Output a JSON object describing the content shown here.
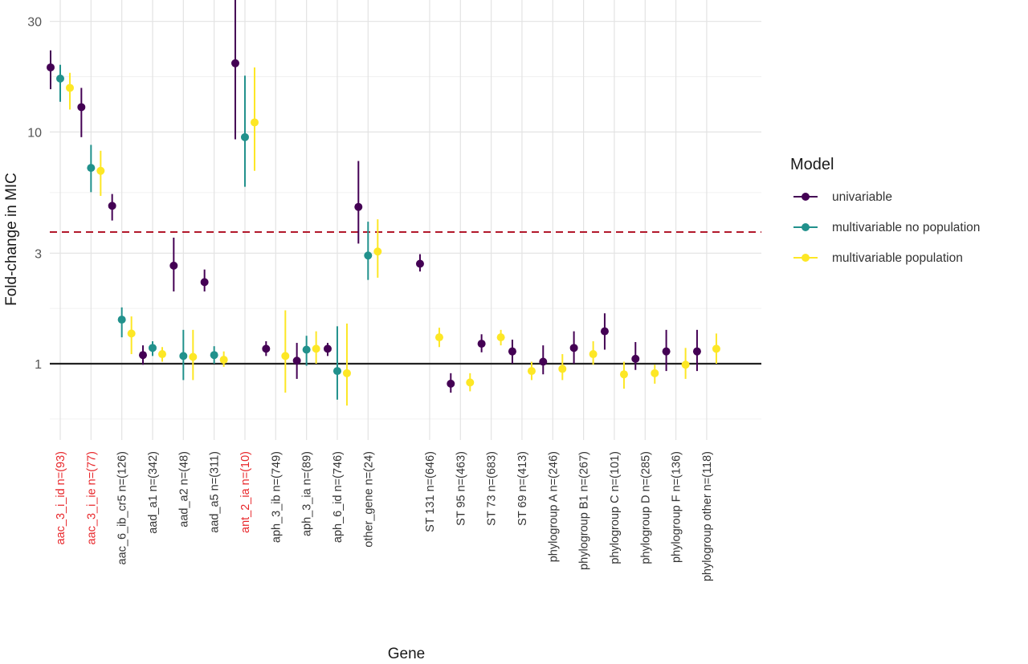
{
  "chart_data": {
    "type": "scatter",
    "subtype": "point-range",
    "ylabel": "Fold-change in MIC",
    "xlabel": "Gene",
    "y_scale": "log",
    "ylim": [
      0.6,
      40
    ],
    "y_ticks": [
      {
        "value": 1,
        "label": "1"
      },
      {
        "value": 3,
        "label": "3"
      },
      {
        "value": 10,
        "label": "10"
      },
      {
        "value": 30,
        "label": "30"
      }
    ],
    "grid": true,
    "reference_lines": [
      {
        "value": 1,
        "style": "solid",
        "color": "#222222"
      },
      {
        "value": 3.7,
        "style": "dashed",
        "color": "#b2182b"
      }
    ],
    "legend": {
      "title": "Model",
      "position": "right"
    },
    "highlight_color": "#e8262a",
    "categories": [
      {
        "label": "aac_3_i_id n=(93)",
        "highlight": true
      },
      {
        "label": "aac_3_i_ie n=(77)",
        "highlight": true
      },
      {
        "label": "aac_6_ib_cr5 n=(126)",
        "highlight": false
      },
      {
        "label": "aad_a1 n=(342)",
        "highlight": false
      },
      {
        "label": "aad_a2 n=(48)",
        "highlight": false
      },
      {
        "label": "aad_a5 n=(311)",
        "highlight": false
      },
      {
        "label": "ant_2_ia n=(10)",
        "highlight": true
      },
      {
        "label": "aph_3_ib n=(749)",
        "highlight": false
      },
      {
        "label": "aph_3_ia n=(89)",
        "highlight": false
      },
      {
        "label": "aph_6_id n=(746)",
        "highlight": false
      },
      {
        "label": "other_gene n=(24)",
        "highlight": false
      },
      {
        "label": "",
        "highlight": false
      },
      {
        "label": "ST 131 n=(646)",
        "highlight": false
      },
      {
        "label": "ST 95 n=(463)",
        "highlight": false
      },
      {
        "label": "ST 73 n=(683)",
        "highlight": false
      },
      {
        "label": "ST 69 n=(413)",
        "highlight": false
      },
      {
        "label": "phylogroup A n=(246)",
        "highlight": false
      },
      {
        "label": "phylogroup B1 n=(267)",
        "highlight": false
      },
      {
        "label": "phylogroup C n=(101)",
        "highlight": false
      },
      {
        "label": "phylogroup D n=(285)",
        "highlight": false
      },
      {
        "label": "phylogroup F n=(136)",
        "highlight": false
      },
      {
        "label": "phylogroup other n=(118)",
        "highlight": false
      }
    ],
    "series": [
      {
        "name": "univariable",
        "color": "#440154",
        "points": [
          {
            "est": 19.0,
            "lo": 15.3,
            "hi": 22.5
          },
          {
            "est": 12.8,
            "lo": 9.5,
            "hi": 15.5
          },
          {
            "est": 4.8,
            "lo": 4.15,
            "hi": 5.4
          },
          {
            "est": 1.09,
            "lo": 0.99,
            "hi": 1.2
          },
          {
            "est": 2.65,
            "lo": 2.05,
            "hi": 3.5
          },
          {
            "est": 2.25,
            "lo": 2.05,
            "hi": 2.55
          },
          {
            "est": 19.8,
            "lo": 9.3,
            "hi": 38.0
          },
          {
            "est": 1.16,
            "lo": 1.08,
            "hi": 1.25
          },
          {
            "est": 1.03,
            "lo": 0.86,
            "hi": 1.23
          },
          {
            "est": 1.16,
            "lo": 1.08,
            "hi": 1.23
          },
          {
            "est": 4.75,
            "lo": 3.3,
            "hi": 7.5
          },
          null,
          {
            "est": 2.7,
            "lo": 2.5,
            "hi": 2.97
          },
          {
            "est": 0.82,
            "lo": 0.75,
            "hi": 0.91
          },
          {
            "est": 1.22,
            "lo": 1.12,
            "hi": 1.34
          },
          {
            "est": 1.13,
            "lo": 1.0,
            "hi": 1.27
          },
          {
            "est": 1.02,
            "lo": 0.9,
            "hi": 1.2
          },
          {
            "est": 1.17,
            "lo": 1.0,
            "hi": 1.38
          },
          {
            "est": 1.38,
            "lo": 1.15,
            "hi": 1.65
          },
          {
            "est": 1.05,
            "lo": 0.94,
            "hi": 1.24
          },
          {
            "est": 1.13,
            "lo": 0.93,
            "hi": 1.4
          },
          {
            "est": 1.13,
            "lo": 0.93,
            "hi": 1.4
          }
        ]
      },
      {
        "name": "multivariable no population",
        "color": "#21918c",
        "points": [
          {
            "est": 17.0,
            "lo": 13.5,
            "hi": 19.5
          },
          {
            "est": 7.0,
            "lo": 5.5,
            "hi": 8.8
          },
          {
            "est": 1.55,
            "lo": 1.3,
            "hi": 1.75
          },
          {
            "est": 1.17,
            "lo": 1.08,
            "hi": 1.25
          },
          {
            "est": 1.08,
            "lo": 0.85,
            "hi": 1.4
          },
          {
            "est": 1.09,
            "lo": 1.0,
            "hi": 1.19
          },
          {
            "est": 9.5,
            "lo": 5.8,
            "hi": 17.5
          },
          null,
          {
            "est": 1.15,
            "lo": 0.98,
            "hi": 1.32
          },
          {
            "est": 0.93,
            "lo": 0.7,
            "hi": 1.45
          },
          {
            "est": 2.93,
            "lo": 2.3,
            "hi": 4.1
          },
          null,
          null,
          null,
          null,
          null,
          null,
          null,
          null,
          null,
          null,
          null
        ]
      },
      {
        "name": "multivariable population",
        "color": "#fde725",
        "points": [
          {
            "est": 15.5,
            "lo": 12.5,
            "hi": 18.0
          },
          {
            "est": 6.8,
            "lo": 5.3,
            "hi": 8.3
          },
          {
            "est": 1.35,
            "lo": 1.1,
            "hi": 1.6
          },
          {
            "est": 1.1,
            "lo": 1.02,
            "hi": 1.18
          },
          {
            "est": 1.07,
            "lo": 0.85,
            "hi": 1.4
          },
          {
            "est": 1.04,
            "lo": 0.97,
            "hi": 1.13
          },
          {
            "est": 11.0,
            "lo": 6.8,
            "hi": 19.0
          },
          {
            "est": 1.08,
            "lo": 0.75,
            "hi": 1.7
          },
          {
            "est": 1.16,
            "lo": 1.0,
            "hi": 1.38
          },
          {
            "est": 0.91,
            "lo": 0.66,
            "hi": 1.49
          },
          {
            "est": 3.05,
            "lo": 2.35,
            "hi": 4.2
          },
          null,
          {
            "est": 1.3,
            "lo": 1.18,
            "hi": 1.43
          },
          {
            "est": 0.83,
            "lo": 0.76,
            "hi": 0.91
          },
          {
            "est": 1.3,
            "lo": 1.2,
            "hi": 1.4
          },
          {
            "est": 0.93,
            "lo": 0.85,
            "hi": 1.02
          },
          {
            "est": 0.95,
            "lo": 0.85,
            "hi": 1.1
          },
          {
            "est": 1.1,
            "lo": 0.99,
            "hi": 1.25
          },
          {
            "est": 0.9,
            "lo": 0.78,
            "hi": 1.02
          },
          {
            "est": 0.91,
            "lo": 0.82,
            "hi": 0.99
          },
          {
            "est": 0.99,
            "lo": 0.86,
            "hi": 1.17
          },
          {
            "est": 1.16,
            "lo": 1.0,
            "hi": 1.35
          }
        ]
      }
    ]
  }
}
